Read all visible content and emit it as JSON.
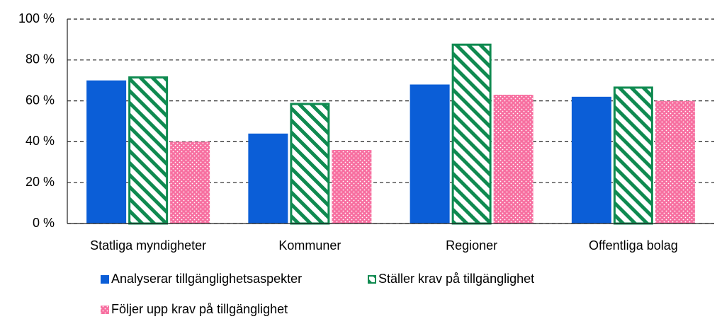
{
  "chart_data": {
    "type": "bar",
    "categories": [
      "Statliga myndigheter",
      "Kommuner",
      "Regioner",
      "Offentliga bolag"
    ],
    "series": [
      {
        "name": "Analyserar tillgänglighetsaspekter",
        "color": "#0b5ed7",
        "pattern": "solid",
        "values": [
          70,
          44,
          68,
          62
        ]
      },
      {
        "name": "Ställer krav på tillgänglighet",
        "color": "#0f8a50",
        "pattern": "hatch",
        "values": [
          72,
          59,
          88,
          67
        ]
      },
      {
        "name": "Följer upp krav på tillgänglighet",
        "color": "#f76fa0",
        "pattern": "dots",
        "values": [
          40,
          36,
          63,
          60
        ]
      }
    ],
    "ylim": [
      0,
      100
    ],
    "yticks": [
      {
        "value": 0,
        "label": "0 %"
      },
      {
        "value": 20,
        "label": "20 %"
      },
      {
        "value": 40,
        "label": "40 %"
      },
      {
        "value": 60,
        "label": "60 %"
      },
      {
        "value": 80,
        "label": "80 %"
      },
      {
        "value": 100,
        "label": "100 %"
      }
    ],
    "grid": true
  }
}
